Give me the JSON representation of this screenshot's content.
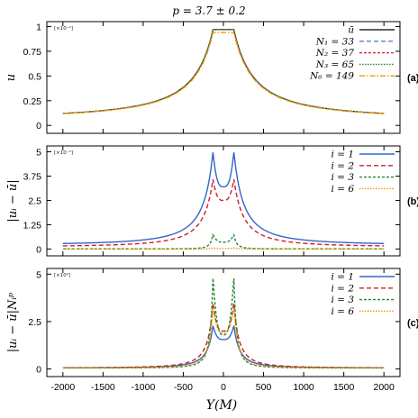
{
  "figure": {
    "title": "p = 3.7 ± 0.2",
    "xlabel": "Y(M)"
  },
  "chart_data": [
    {
      "type": "line",
      "panel_tag": "(a)",
      "ylabel": "u",
      "scale_note": "[×10⁻²]",
      "xlim": [
        -2200,
        2200
      ],
      "ylim": [
        -0.08,
        1.05
      ],
      "xticks": [
        "-2000",
        "-1500",
        "-1000",
        "-500",
        "0",
        "500",
        "1000",
        "1500",
        "2000"
      ],
      "yticks": [
        "0",
        "0.25",
        "0.5",
        "0.75",
        "1"
      ],
      "ytick_values": [
        0,
        0.25,
        0.5,
        0.75,
        1
      ],
      "grid": false,
      "legend_position": "top-right",
      "series": [
        {
          "name": "ū",
          "color": "#000000",
          "dash": "",
          "width": 1.2,
          "peak": 0.97,
          "floor": 0.055,
          "w": 360,
          "pow": 0.9,
          "edge": 130,
          "dip": 0,
          "x": [
            -2000,
            -1500,
            -1000,
            -500,
            -200,
            -130,
            0,
            130,
            200,
            500,
            1000,
            1500,
            2000
          ],
          "values": [
            0.055,
            0.07,
            0.1,
            0.2,
            0.48,
            0.97,
            0.97,
            0.97,
            0.48,
            0.2,
            0.1,
            0.07,
            0.055
          ]
        },
        {
          "name": "N₁ = 33",
          "color": "#3366cc",
          "dash": "5,3",
          "width": 1.2,
          "peak": 0.97,
          "floor": 0.055,
          "w": 360,
          "pow": 0.9,
          "edge": 130,
          "dip": 0,
          "x": [
            -2000,
            -1500,
            -1000,
            -500,
            -200,
            -130,
            0,
            130,
            200,
            500,
            1000,
            1500,
            2000
          ],
          "values": [
            0.055,
            0.07,
            0.1,
            0.2,
            0.48,
            0.97,
            0.97,
            0.97,
            0.48,
            0.2,
            0.1,
            0.07,
            0.055
          ]
        },
        {
          "name": "N₂ = 37",
          "color": "#cc2222",
          "dash": "3,2",
          "width": 1.2,
          "peak": 0.97,
          "floor": 0.055,
          "w": 360,
          "pow": 0.9,
          "edge": 130,
          "dip": 0,
          "x": [
            -2000,
            -1500,
            -1000,
            -500,
            -200,
            -130,
            0,
            130,
            200,
            500,
            1000,
            1500,
            2000
          ],
          "values": [
            0.055,
            0.07,
            0.1,
            0.2,
            0.48,
            0.97,
            0.97,
            0.97,
            0.48,
            0.2,
            0.1,
            0.07,
            0.055
          ]
        },
        {
          "name": "N₃ = 65",
          "color": "#228833",
          "dash": "1.5,1.5",
          "width": 1.4,
          "peak": 0.97,
          "floor": 0.055,
          "w": 360,
          "pow": 0.9,
          "edge": 130,
          "dip": 0,
          "x": [
            -2000,
            -1500,
            -1000,
            -500,
            -200,
            -130,
            0,
            130,
            200,
            500,
            1000,
            1500,
            2000
          ],
          "values": [
            0.055,
            0.07,
            0.1,
            0.2,
            0.48,
            0.97,
            0.97,
            0.97,
            0.48,
            0.2,
            0.1,
            0.07,
            0.055
          ]
        },
        {
          "name": "N₆ = 149",
          "color": "#ee9900",
          "dash": "6,2,1.5,2",
          "width": 1.4,
          "peak": 0.94,
          "floor": 0.055,
          "w": 360,
          "pow": 0.9,
          "edge": 130,
          "dip": 0,
          "x": [
            -2000,
            -1500,
            -1000,
            -500,
            -200,
            -130,
            0,
            130,
            200,
            500,
            1000,
            1500,
            2000
          ],
          "values": [
            0.055,
            0.07,
            0.1,
            0.2,
            0.47,
            0.94,
            0.94,
            0.94,
            0.47,
            0.2,
            0.1,
            0.07,
            0.055
          ]
        }
      ]
    },
    {
      "type": "line",
      "panel_tag": "(b)",
      "ylabel": "|uᵢ − ū|",
      "scale_note": "[×10⁻⁴]",
      "xlim": [
        -2200,
        2200
      ],
      "ylim": [
        -0.35,
        5.3
      ],
      "xticks": [
        "-2000",
        "-1500",
        "-1000",
        "-500",
        "0",
        "500",
        "1000",
        "1500",
        "2000"
      ],
      "yticks": [
        "0",
        "1.25",
        "2.5",
        "3.75",
        "5"
      ],
      "ytick_values": [
        0,
        1.25,
        2.5,
        3.75,
        5
      ],
      "grid": false,
      "legend_position": "top-right",
      "series": [
        {
          "name": "i = 1",
          "color": "#3366cc",
          "dash": "",
          "width": 1.4,
          "peak": 5.0,
          "floor": 0.2,
          "w": 210,
          "pow": 1.1,
          "edge": 130,
          "dip": 3.2,
          "x": [
            -2000,
            -1000,
            -500,
            -200,
            -130,
            0,
            130,
            200,
            500,
            1000,
            2000
          ],
          "values": [
            0.2,
            0.4,
            0.9,
            2.6,
            5.0,
            3.2,
            5.0,
            2.6,
            0.9,
            0.4,
            0.2
          ]
        },
        {
          "name": "i = 2",
          "color": "#cc2222",
          "dash": "5,3",
          "width": 1.4,
          "peak": 3.6,
          "floor": 0.1,
          "w": 210,
          "pow": 1.1,
          "edge": 130,
          "dip": 2.5,
          "x": [
            -2000,
            -1000,
            -500,
            -200,
            -130,
            0,
            130,
            200,
            500,
            1000,
            2000
          ],
          "values": [
            0.1,
            0.25,
            0.6,
            1.9,
            3.6,
            2.5,
            3.6,
            1.9,
            0.6,
            0.25,
            0.1
          ]
        },
        {
          "name": "i = 3",
          "color": "#228833",
          "dash": "3,2",
          "width": 1.4,
          "peak": 0.75,
          "floor": 0.01,
          "w": 80,
          "pow": 1.6,
          "edge": 130,
          "dip": 0.35,
          "x": [
            -2000,
            -1000,
            -500,
            -200,
            -130,
            0,
            130,
            200,
            500,
            1000,
            2000
          ],
          "values": [
            0.01,
            0.02,
            0.05,
            0.25,
            0.75,
            0.35,
            0.75,
            0.25,
            0.05,
            0.02,
            0.01
          ]
        },
        {
          "name": "i = 6",
          "color": "#ee9900",
          "dash": "1.5,1.5",
          "width": 1.4,
          "peak": 0.05,
          "floor": 0.0,
          "w": 80,
          "pow": 1.6,
          "edge": 130,
          "dip": 0.03,
          "x": [
            -2000,
            -1000,
            -500,
            -200,
            -130,
            0,
            130,
            200,
            500,
            1000,
            2000
          ],
          "values": [
            0,
            0,
            0,
            0.02,
            0.05,
            0.03,
            0.05,
            0.02,
            0,
            0,
            0
          ]
        }
      ]
    },
    {
      "type": "line",
      "panel_tag": "(c)",
      "ylabel": "|uᵢ − ū|Nᵢᵖ",
      "scale_note": "[×10²]",
      "xlim": [
        -2200,
        2200
      ],
      "ylim": [
        -0.4,
        5.3
      ],
      "xticks": [
        "-2000",
        "-1500",
        "-1000",
        "-500",
        "0",
        "500",
        "1000",
        "1500",
        "2000"
      ],
      "yticks": [
        "0",
        "2.5",
        "5"
      ],
      "ytick_values": [
        0,
        2.5,
        5
      ],
      "grid": false,
      "legend_position": "top-right",
      "series": [
        {
          "name": "i = 1",
          "color": "#3366cc",
          "dash": "",
          "width": 1.4,
          "peak": 2.3,
          "floor": 0.05,
          "w": 130,
          "pow": 1.2,
          "edge": 130,
          "dip": 1.55,
          "x": [
            -2000,
            -1000,
            -500,
            -200,
            -130,
            0,
            130,
            200,
            500,
            1000,
            2000
          ],
          "values": [
            0.05,
            0.15,
            0.4,
            1.2,
            2.3,
            1.55,
            2.3,
            1.2,
            0.4,
            0.15,
            0.05
          ]
        },
        {
          "name": "i = 2",
          "color": "#cc2222",
          "dash": "5,3",
          "width": 1.4,
          "peak": 3.5,
          "floor": 0.05,
          "w": 120,
          "pow": 1.2,
          "edge": 130,
          "dip": 2.0,
          "x": [
            -2000,
            -1000,
            -500,
            -200,
            -130,
            0,
            130,
            200,
            500,
            1000,
            2000
          ],
          "values": [
            0.05,
            0.15,
            0.45,
            1.6,
            3.5,
            2.0,
            3.5,
            1.6,
            0.45,
            0.15,
            0.05
          ]
        },
        {
          "name": "i = 3",
          "color": "#228833",
          "dash": "3,2",
          "width": 1.4,
          "peak": 4.9,
          "floor": 0.05,
          "w": 70,
          "pow": 1.4,
          "edge": 130,
          "dip": 1.8,
          "x": [
            -2000,
            -1000,
            -500,
            -200,
            -130,
            0,
            130,
            200,
            500,
            1000,
            2000
          ],
          "values": [
            0.05,
            0.12,
            0.35,
            1.5,
            4.9,
            1.8,
            4.9,
            1.5,
            0.35,
            0.12,
            0.05
          ]
        },
        {
          "name": "i = 6",
          "color": "#ee9900",
          "dash": "1.5,1.5",
          "width": 1.4,
          "peak": 3.3,
          "floor": 0.05,
          "w": 90,
          "pow": 1.3,
          "edge": 130,
          "dip": 1.9,
          "x": [
            -2000,
            -1000,
            -500,
            -200,
            -130,
            0,
            130,
            200,
            500,
            1000,
            2000
          ],
          "values": [
            0.05,
            0.12,
            0.4,
            1.4,
            3.3,
            1.9,
            3.3,
            1.4,
            0.4,
            0.12,
            0.05
          ]
        }
      ]
    }
  ]
}
